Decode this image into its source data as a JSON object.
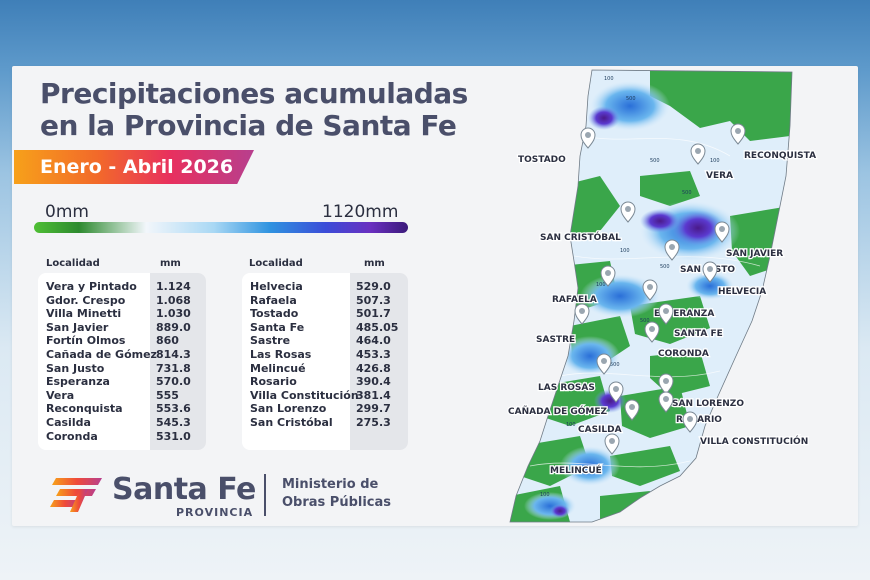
{
  "title_lines": [
    "Precipitaciones acumuladas",
    "en la Provincia de Santa Fe"
  ],
  "period": "Enero - Abril 2026",
  "legend": {
    "min": "0mm",
    "max": "1120mm",
    "colors": [
      "#4fbf35",
      "#2d8a2f",
      "#f2f6fb",
      "#a9d8f4",
      "#2f93e0",
      "#3b4cd8",
      "#6a2fc0",
      "#3b1a7a"
    ]
  },
  "table_headers": {
    "location": "Localidad",
    "value": "mm"
  },
  "table_left": [
    {
      "loc": "Vera y Pintado",
      "mm": "1.124"
    },
    {
      "loc": "Gdor. Crespo",
      "mm": "1.068"
    },
    {
      "loc": "Villa Minetti",
      "mm": "1.030"
    },
    {
      "loc": "San Javier",
      "mm": "889.0"
    },
    {
      "loc": "Fortín Olmos",
      "mm": "860"
    },
    {
      "loc": "Cañada de Gómez",
      "mm": "814.3"
    },
    {
      "loc": "San Justo",
      "mm": "731.8"
    },
    {
      "loc": "Esperanza",
      "mm": "570.0"
    },
    {
      "loc": "Vera",
      "mm": "555"
    },
    {
      "loc": "Reconquista",
      "mm": "553.6"
    },
    {
      "loc": "Casilda",
      "mm": "545.3"
    },
    {
      "loc": "Coronda",
      "mm": "531.0"
    }
  ],
  "table_right": [
    {
      "loc": "Helvecia",
      "mm": "529.0"
    },
    {
      "loc": "Rafaela",
      "mm": "507.3"
    },
    {
      "loc": "Tostado",
      "mm": "501.7"
    },
    {
      "loc": "Santa Fe",
      "mm": "485.05"
    },
    {
      "loc": "Sastre",
      "mm": "464.0"
    },
    {
      "loc": "Las Rosas",
      "mm": "453.3"
    },
    {
      "loc": "Melincué",
      "mm": "426.8"
    },
    {
      "loc": "Rosario",
      "mm": "390.4"
    },
    {
      "loc": "Villa Constitución",
      "mm": "381.4"
    },
    {
      "loc": "San Lorenzo",
      "mm": "299.7"
    },
    {
      "loc": "San Cristóbal",
      "mm": "275.3"
    }
  ],
  "footer": {
    "brand": "Santa Fe",
    "brand_sub": "PROVINCIA",
    "ministry_lines": [
      "Ministerio de",
      "Obras Públicas"
    ]
  },
  "map": {
    "cities": [
      {
        "name": "TOSTADO"
      },
      {
        "name": "RECONQUISTA"
      },
      {
        "name": "VERA"
      },
      {
        "name": "SAN CRISTÓBAL"
      },
      {
        "name": "SAN JAVIER"
      },
      {
        "name": "SAN JUSTO"
      },
      {
        "name": "HELVECIA"
      },
      {
        "name": "RAFAELA"
      },
      {
        "name": "ESPERANZA"
      },
      {
        "name": "SANTA FE"
      },
      {
        "name": "SASTRE"
      },
      {
        "name": "CORONDA"
      },
      {
        "name": "LAS ROSAS"
      },
      {
        "name": "SAN LORENZO"
      },
      {
        "name": "CAÑADA DE GÓMEZ"
      },
      {
        "name": "ROSARIO"
      },
      {
        "name": "CASILDA"
      },
      {
        "name": "VILLA CONSTITUCIÓN"
      },
      {
        "name": "MELINCUÉ"
      }
    ],
    "isolines": [
      "100",
      "500",
      "500",
      "100",
      "500",
      "100",
      "500",
      "100",
      "500",
      "500",
      "100",
      "100"
    ]
  }
}
